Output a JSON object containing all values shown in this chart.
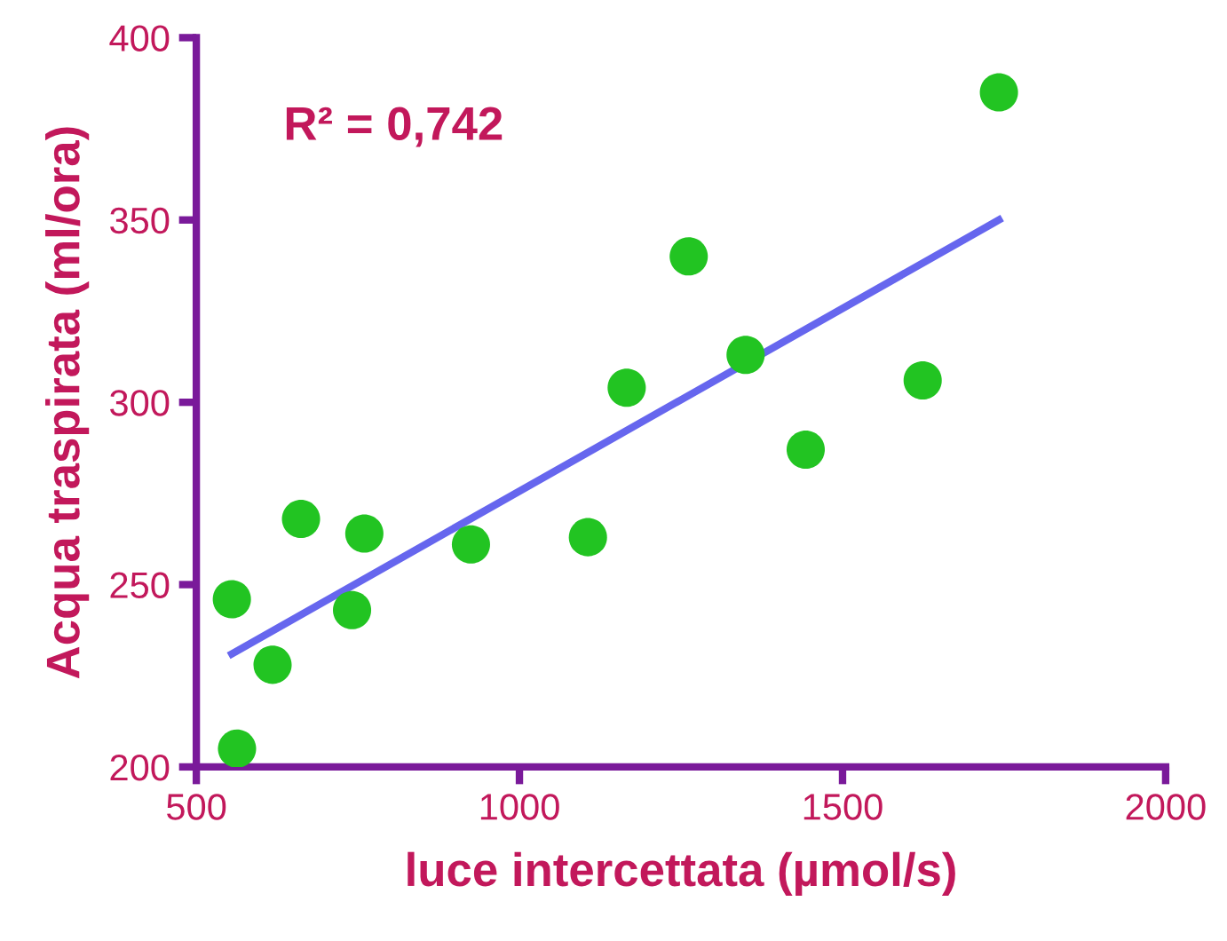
{
  "chart_data": {
    "type": "scatter",
    "xlabel": "luce intercettata (µmol/s)",
    "ylabel": "Acqua traspirata (ml/ora)",
    "annotations": [
      "R² = 0,742"
    ],
    "xlim": [
      500,
      2000
    ],
    "ylim": [
      200,
      400
    ],
    "xticks": [
      500,
      1000,
      1500,
      2000
    ],
    "yticks": [
      200,
      250,
      300,
      350,
      400
    ],
    "grid": false,
    "legend": false,
    "series": [
      {
        "marker": "circle",
        "color": "#22c422",
        "x": [
          555,
          563,
          618,
          662,
          741,
          760,
          925,
          1106,
          1166,
          1262,
          1350,
          1443,
          1624,
          1742
        ],
        "values": [
          246,
          205,
          228,
          268,
          243,
          264,
          261,
          263,
          304,
          340,
          313,
          287,
          306,
          385
        ]
      },
      {
        "type": "line",
        "marker": "none",
        "color": "#6666ee",
        "x": [
          555,
          1742
        ],
        "values": [
          231,
          350
        ]
      }
    ]
  }
}
